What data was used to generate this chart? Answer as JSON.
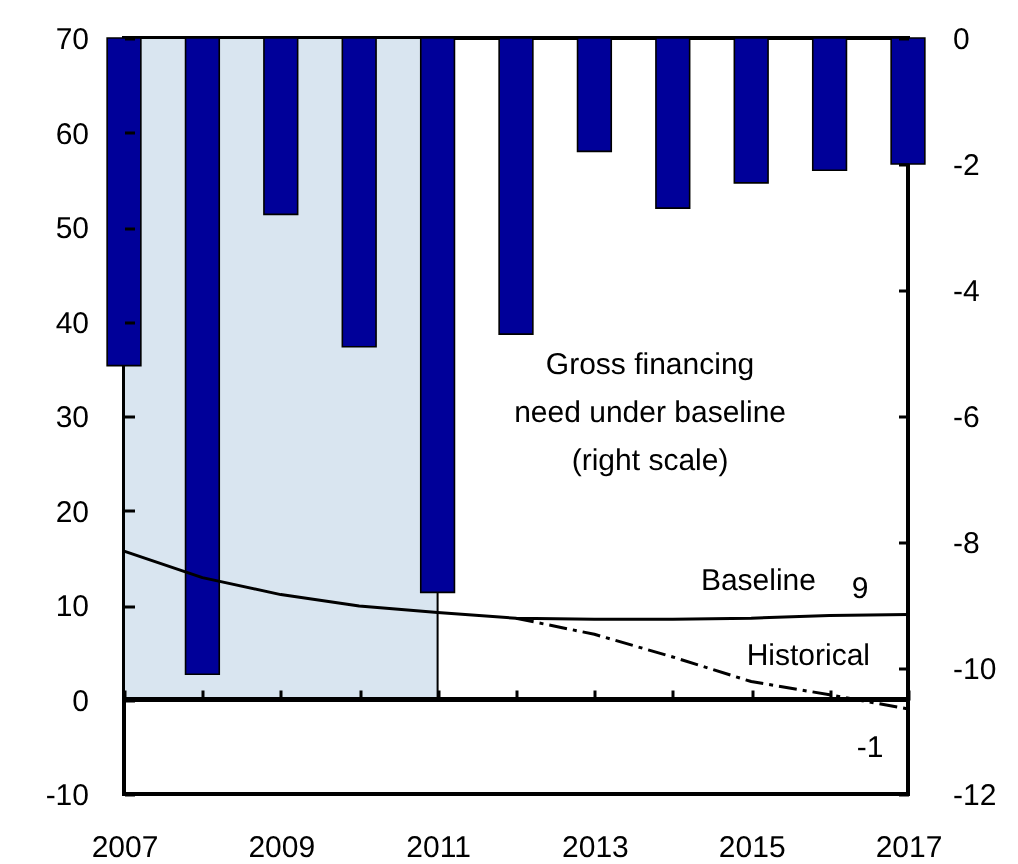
{
  "chart_data": {
    "type": "bar",
    "x": [
      2007,
      2008,
      2009,
      2010,
      2011,
      2012,
      2013,
      2014,
      2015,
      2016,
      2017
    ],
    "xlim": [
      2007,
      2017
    ],
    "xticks": [
      2007,
      {
        "value": 2008,
        "label": null
      },
      2009,
      {
        "value": 2010,
        "label": null
      },
      2011,
      {
        "value": 2012,
        "label": null
      },
      2013,
      {
        "value": 2014,
        "label": null
      },
      2015,
      {
        "value": 2016,
        "label": null
      },
      2017
    ],
    "ylim": [
      -10,
      70
    ],
    "yticks": [
      -10,
      0,
      10,
      20,
      30,
      40,
      50,
      60,
      70
    ],
    "y2lim": [
      -12,
      0
    ],
    "y2ticks": [
      -12,
      -10,
      -8,
      -6,
      -4,
      -2,
      0
    ],
    "bands": [
      {
        "axis": "x",
        "from": 2007,
        "to": 2011,
        "color": "#d9e5f0"
      }
    ],
    "ref_lines": [
      {
        "axis": "y",
        "value": 0
      }
    ],
    "series": [
      {
        "axis": "y2",
        "name": "Gross financing need under baseline (right scale)",
        "color": "#000099",
        "values": [
          -5.2,
          -10.1,
          -2.8,
          -4.9,
          -8.8,
          -4.7,
          -1.8,
          -2.7,
          -2.3,
          -2.1,
          -2.0
        ]
      },
      {
        "type": "line",
        "name": "Baseline",
        "color": "#000000",
        "values": [
          15.7,
          12.9,
          11.1,
          9.9,
          9.2,
          8.6,
          8.5,
          8.5,
          8.6,
          8.9,
          9
        ],
        "value_labels": [
          null,
          null,
          null,
          null,
          null,
          null,
          null,
          null,
          null,
          null,
          "9"
        ]
      },
      {
        "type": "line",
        "name": "Historical",
        "color": "#000000",
        "line_style": "dashed",
        "x": [
          2012,
          2013,
          2014,
          2015,
          2016,
          2017
        ],
        "values": [
          8.6,
          6.9,
          4.5,
          1.9,
          0.5,
          -1
        ],
        "value_labels": [
          null,
          null,
          null,
          null,
          null,
          "-1"
        ]
      }
    ]
  }
}
